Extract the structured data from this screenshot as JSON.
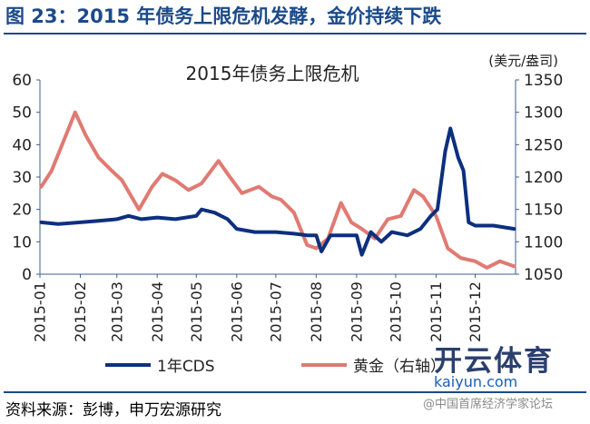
{
  "figure_title": "图 23：2015 年债务上限危机发酵，金价持续下跌",
  "source": "资料来源：彭博，申万宏源研究",
  "watermark": {
    "brand": "开云体育",
    "url": "kaiyun.com",
    "credit": "@中国首席经济学家论坛"
  },
  "colors": {
    "cds": "#0d2f7f",
    "gold": "#e07a72",
    "title_blue": "#1b4a8a",
    "axis": "#3e5f8f"
  },
  "chart_data": {
    "type": "line",
    "title": "2015年债务上限危机",
    "right_unit": "(美元/盎司)",
    "x": [
      "2015-01",
      "2015-02",
      "2015-03",
      "2015-04",
      "2015-05",
      "2015-06",
      "2015-07",
      "2015-08",
      "2015-09",
      "2015-10",
      "2015-11",
      "2015-12"
    ],
    "ylim_left": [
      0,
      60
    ],
    "yticks_left": [
      0,
      10,
      20,
      30,
      40,
      50,
      60
    ],
    "ylim_right": [
      1050,
      1350
    ],
    "yticks_right": [
      1050,
      1100,
      1150,
      1200,
      1250,
      1300,
      1350
    ],
    "grid": false,
    "legend": "bottom",
    "series": [
      {
        "name": "1年CDS",
        "axis": "left",
        "color": "#0d2f7f",
        "points": [
          [
            "2015-01-02",
            16
          ],
          [
            "2015-01-15",
            15.5
          ],
          [
            "2015-02-01",
            16
          ],
          [
            "2015-02-15",
            16.5
          ],
          [
            "2015-03-01",
            17
          ],
          [
            "2015-03-10",
            18
          ],
          [
            "2015-03-20",
            17
          ],
          [
            "2015-04-01",
            17.5
          ],
          [
            "2015-04-15",
            17
          ],
          [
            "2015-05-01",
            18
          ],
          [
            "2015-05-05",
            20
          ],
          [
            "2015-05-15",
            19
          ],
          [
            "2015-05-25",
            17
          ],
          [
            "2015-06-01",
            14
          ],
          [
            "2015-06-15",
            13
          ],
          [
            "2015-07-01",
            13
          ],
          [
            "2015-07-15",
            12.5
          ],
          [
            "2015-07-25",
            12
          ],
          [
            "2015-08-01",
            12
          ],
          [
            "2015-08-05",
            7
          ],
          [
            "2015-08-12",
            12
          ],
          [
            "2015-08-25",
            12
          ],
          [
            "2015-09-01",
            12
          ],
          [
            "2015-09-05",
            6
          ],
          [
            "2015-09-12",
            13
          ],
          [
            "2015-09-20",
            10
          ],
          [
            "2015-09-28",
            13
          ],
          [
            "2015-10-10",
            12
          ],
          [
            "2015-10-20",
            14
          ],
          [
            "2015-10-28",
            18
          ],
          [
            "2015-11-02",
            20
          ],
          [
            "2015-11-08",
            38
          ],
          [
            "2015-11-12",
            45
          ],
          [
            "2015-11-18",
            36
          ],
          [
            "2015-11-22",
            32
          ],
          [
            "2015-11-26",
            16
          ],
          [
            "2015-12-01",
            15
          ],
          [
            "2015-12-15",
            15
          ],
          [
            "2015-12-31",
            14
          ]
        ]
      },
      {
        "name": "黄金（右轴）",
        "axis": "right",
        "color": "#e07a72",
        "points": [
          [
            "2015-01-02",
            1185
          ],
          [
            "2015-01-10",
            1210
          ],
          [
            "2015-01-20",
            1260
          ],
          [
            "2015-01-28",
            1300
          ],
          [
            "2015-02-05",
            1265
          ],
          [
            "2015-02-15",
            1230
          ],
          [
            "2015-02-25",
            1210
          ],
          [
            "2015-03-05",
            1195
          ],
          [
            "2015-03-18",
            1150
          ],
          [
            "2015-03-28",
            1185
          ],
          [
            "2015-04-05",
            1205
          ],
          [
            "2015-04-15",
            1195
          ],
          [
            "2015-04-25",
            1180
          ],
          [
            "2015-05-05",
            1190
          ],
          [
            "2015-05-18",
            1225
          ],
          [
            "2015-05-25",
            1205
          ],
          [
            "2015-06-05",
            1175
          ],
          [
            "2015-06-18",
            1185
          ],
          [
            "2015-06-28",
            1170
          ],
          [
            "2015-07-05",
            1165
          ],
          [
            "2015-07-15",
            1145
          ],
          [
            "2015-07-25",
            1095
          ],
          [
            "2015-08-01",
            1090
          ],
          [
            "2015-08-10",
            1105
          ],
          [
            "2015-08-20",
            1160
          ],
          [
            "2015-08-28",
            1130
          ],
          [
            "2015-09-05",
            1120
          ],
          [
            "2015-09-15",
            1105
          ],
          [
            "2015-09-25",
            1135
          ],
          [
            "2015-10-05",
            1140
          ],
          [
            "2015-10-15",
            1180
          ],
          [
            "2015-10-22",
            1170
          ],
          [
            "2015-11-01",
            1140
          ],
          [
            "2015-11-10",
            1090
          ],
          [
            "2015-11-20",
            1075
          ],
          [
            "2015-12-01",
            1070
          ],
          [
            "2015-12-10",
            1060
          ],
          [
            "2015-12-20",
            1070
          ],
          [
            "2015-12-31",
            1062
          ]
        ]
      }
    ]
  }
}
